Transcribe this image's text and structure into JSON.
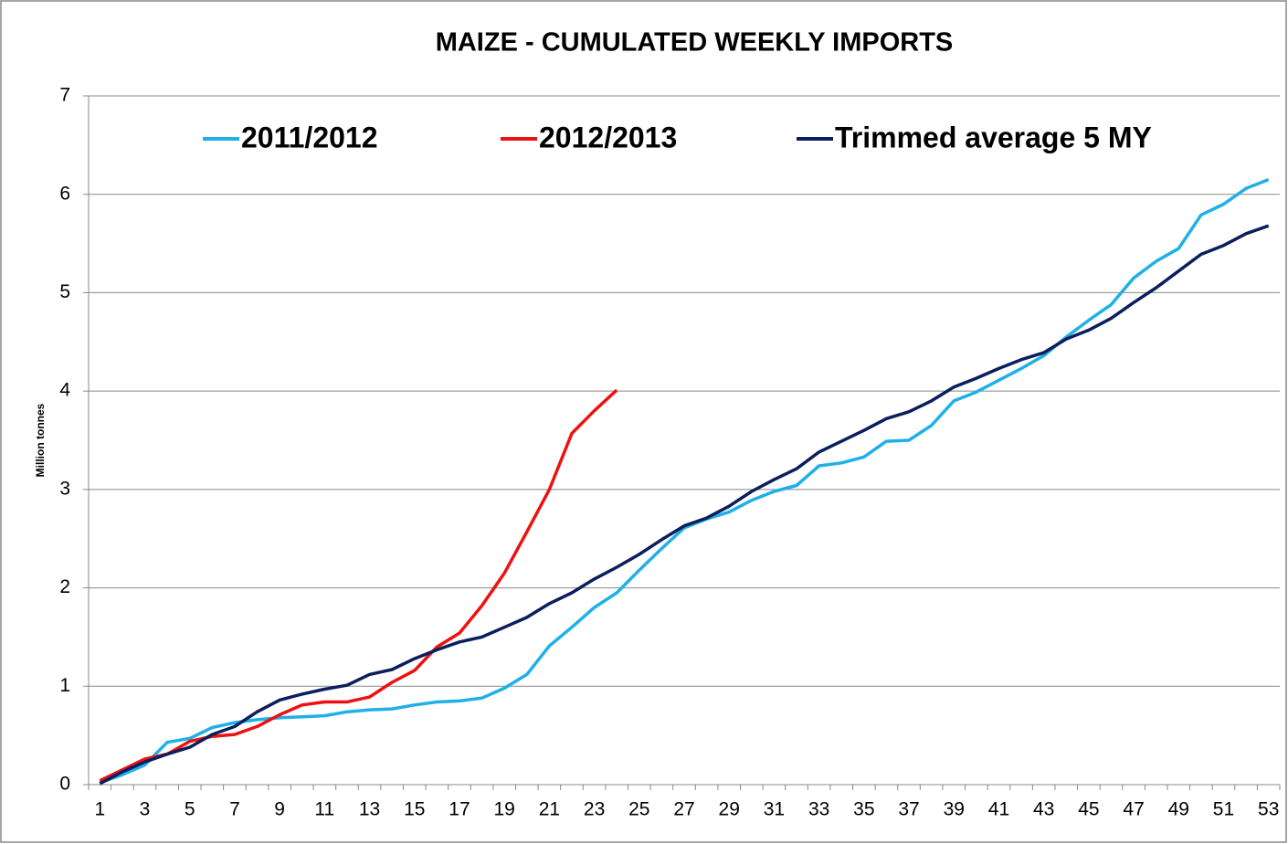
{
  "chart_data": {
    "type": "line",
    "title": "MAIZE - CUMULATED WEEKLY IMPORTS",
    "y_label": "Million tonnes",
    "categories": [
      1,
      null,
      3,
      null,
      5,
      null,
      7,
      null,
      9,
      null,
      11,
      null,
      13,
      null,
      15,
      null,
      17,
      null,
      19,
      null,
      21,
      null,
      23,
      null,
      25,
      null,
      27,
      null,
      29,
      null,
      31,
      null,
      33,
      null,
      35,
      null,
      37,
      null,
      39,
      null,
      41,
      null,
      43,
      null,
      45,
      null,
      47,
      null,
      49,
      null,
      51,
      null,
      53
    ],
    "ylim": [
      0,
      7
    ],
    "yticks": [
      0,
      1,
      2,
      3,
      4,
      5,
      6,
      7
    ],
    "grid": true,
    "legend": "top",
    "series": [
      {
        "name": "2011/2012",
        "color": "#1fb0e8",
        "values": [
          0.02,
          0.1,
          0.2,
          0.43,
          0.47,
          0.58,
          0.63,
          0.66,
          0.68,
          0.69,
          0.7,
          0.74,
          0.76,
          0.77,
          0.81,
          0.84,
          0.85,
          0.88,
          0.98,
          1.12,
          1.41,
          1.6,
          1.8,
          1.95,
          2.18,
          2.4,
          2.61,
          2.7,
          2.77,
          2.89,
          2.98,
          3.04,
          3.24,
          3.27,
          3.33,
          3.49,
          3.5,
          3.65,
          3.9,
          3.99,
          4.11,
          4.23,
          4.36,
          4.55,
          4.72,
          4.88,
          5.15,
          5.32,
          5.45,
          5.79,
          5.9,
          6.06,
          6.15
        ]
      },
      {
        "name": "2012/2013",
        "color": "#ee1111",
        "values": [
          0.04,
          0.15,
          0.26,
          0.31,
          0.44,
          0.49,
          0.51,
          0.59,
          0.71,
          0.81,
          0.84,
          0.84,
          0.89,
          1.04,
          1.16,
          1.4,
          1.54,
          1.82,
          2.15,
          2.57,
          3.0,
          3.57,
          3.8,
          4.01,
          null,
          null,
          null,
          null,
          null,
          null,
          null,
          null,
          null,
          null,
          null,
          null,
          null,
          null,
          null,
          null,
          null,
          null,
          null,
          null,
          null,
          null,
          null,
          null,
          null,
          null,
          null,
          null,
          null
        ]
      },
      {
        "name": "Trimmed average 5 MY",
        "color": "#0c1f5c",
        "values": [
          0.01,
          0.13,
          0.23,
          0.31,
          0.38,
          0.51,
          0.59,
          0.74,
          0.86,
          0.92,
          0.97,
          1.01,
          1.12,
          1.17,
          1.28,
          1.37,
          1.45,
          1.5,
          1.6,
          1.7,
          1.84,
          1.95,
          2.09,
          2.21,
          2.34,
          2.49,
          2.63,
          2.71,
          2.83,
          2.98,
          3.1,
          3.21,
          3.38,
          3.49,
          3.6,
          3.72,
          3.79,
          3.9,
          4.04,
          4.13,
          4.23,
          4.32,
          4.39,
          4.53,
          4.62,
          4.74,
          4.9,
          5.05,
          5.22,
          5.39,
          5.48,
          5.6,
          5.68
        ]
      }
    ]
  }
}
